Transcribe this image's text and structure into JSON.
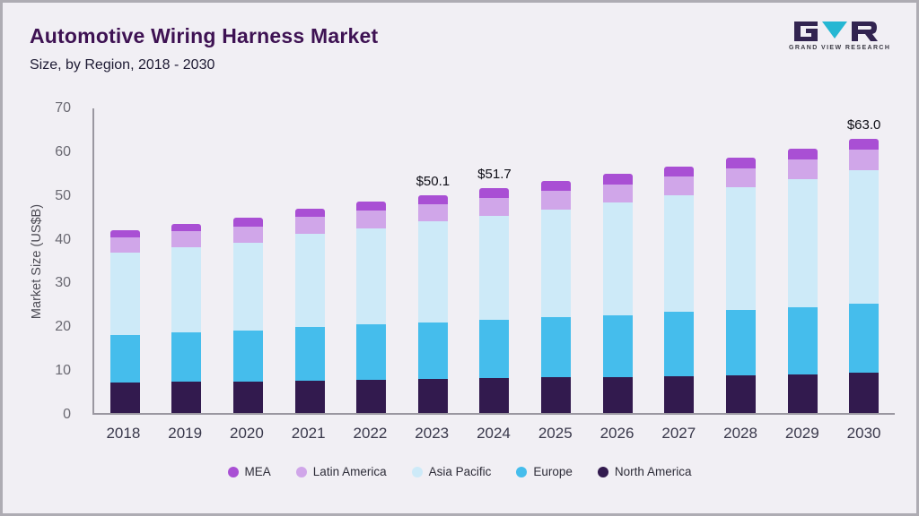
{
  "header": {
    "title": "Automotive Wiring Harness Market",
    "subtitle": "Size, by Region, 2018 - 2030"
  },
  "logo": {
    "text": "GRAND VIEW RESEARCH",
    "dark_color": "#322450",
    "accent_color": "#25b7d3"
  },
  "chart_data": {
    "type": "bar",
    "stacked": true,
    "title": "Automotive Wiring Harness Market Size, by Region, 2018 - 2030",
    "xlabel": "",
    "ylabel": "Market Size (US$B)",
    "ylim": [
      0,
      70
    ],
    "yticks": [
      0,
      10,
      20,
      30,
      40,
      50,
      60,
      70
    ],
    "grid": false,
    "legend_position": "bottom",
    "categories": [
      "2018",
      "2019",
      "2020",
      "2021",
      "2022",
      "2023",
      "2024",
      "2025",
      "2026",
      "2027",
      "2028",
      "2029",
      "2030"
    ],
    "series": [
      {
        "name": "North America",
        "color": "#321a4e",
        "values": [
          7.0,
          7.2,
          7.3,
          7.5,
          7.7,
          7.8,
          8.0,
          8.2,
          8.3,
          8.5,
          8.7,
          8.9,
          9.2
        ]
      },
      {
        "name": "Europe",
        "color": "#45bdec",
        "values": [
          11.0,
          11.4,
          11.7,
          12.2,
          12.7,
          13.0,
          13.4,
          13.8,
          14.2,
          14.7,
          15.0,
          15.5,
          16.0
        ]
      },
      {
        "name": "Asia Pacific",
        "color": "#cdeaf8",
        "values": [
          18.8,
          19.4,
          20.1,
          21.4,
          22.1,
          23.2,
          24.0,
          24.8,
          25.8,
          26.8,
          28.2,
          29.4,
          30.6
        ]
      },
      {
        "name": "Latin America",
        "color": "#d0a6e9",
        "values": [
          3.5,
          3.7,
          3.8,
          3.9,
          4.0,
          4.0,
          4.1,
          4.2,
          4.3,
          4.3,
          4.3,
          4.4,
          4.7
        ]
      },
      {
        "name": "MEA",
        "color": "#a94fd4",
        "values": [
          1.7,
          1.8,
          1.9,
          2.0,
          2.0,
          2.1,
          2.2,
          2.3,
          2.3,
          2.3,
          2.4,
          2.5,
          2.5
        ]
      }
    ],
    "totals": [
      42.0,
      43.5,
      44.8,
      47.0,
      48.5,
      50.1,
      51.7,
      53.3,
      54.9,
      56.6,
      58.6,
      60.7,
      63.0
    ],
    "annotations": [
      {
        "category": "2023",
        "label": "$50.1"
      },
      {
        "category": "2024",
        "label": "$51.7"
      },
      {
        "category": "2030",
        "label": "$63.0"
      }
    ],
    "legend_order": [
      "MEA",
      "Latin America",
      "Asia Pacific",
      "Europe",
      "North America"
    ]
  }
}
